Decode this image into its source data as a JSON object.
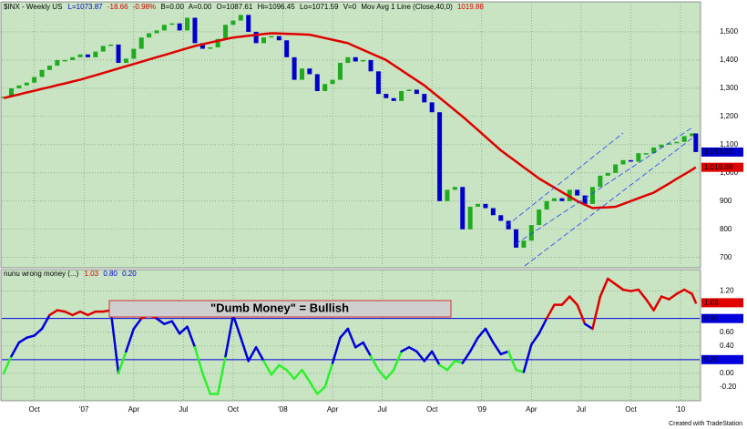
{
  "header": {
    "symbol": "$INX - Weekly US",
    "last": "L=1073.87",
    "change": "-18.66",
    "pct": "-0.98%",
    "bid": "B=0.00",
    "ask": "A=0.00",
    "open": "O=1087.61",
    "high": "Hi=1096.45",
    "low": "Lo=1071.59",
    "volume": "V=0",
    "study": "Mov Avg 1 Line (Close,40,0)",
    "study_value": "1019.88"
  },
  "chart_data": [
    {
      "type": "candlestick",
      "x": [
        0,
        2,
        4,
        6,
        8,
        10,
        12,
        14,
        16,
        18,
        20,
        22,
        24,
        26,
        28,
        30,
        32,
        34,
        36,
        38,
        40,
        42,
        44,
        46,
        48,
        50,
        52,
        54,
        56,
        58,
        60,
        62,
        64,
        66,
        68,
        70,
        72,
        74,
        76,
        78,
        80,
        82,
        84,
        86,
        88,
        90,
        92,
        94,
        96,
        98,
        100,
        102,
        104,
        106,
        108,
        110,
        112,
        114,
        116,
        118,
        120,
        122,
        124,
        126,
        128,
        130,
        132,
        134,
        136,
        138,
        140,
        142,
        144,
        146,
        148,
        150,
        152,
        154,
        156,
        158,
        160,
        162,
        164,
        166,
        168,
        170,
        172,
        174,
        176,
        178,
        180,
        181
      ],
      "up_color": "#1faa1f",
      "down_color": "#0000cc",
      "series": [
        {
          "color": "#0000cc",
          "last_label": "1,073.87",
          "values": [
            1270,
            1300,
            1310,
            1320,
            1340,
            1365,
            1380,
            1400,
            1400,
            1410,
            1420,
            1410,
            1430,
            1450,
            1455,
            1390,
            1405,
            1440,
            1480,
            1495,
            1505,
            1525,
            1530,
            1505,
            1550,
            1460,
            1440,
            1445,
            1475,
            1525,
            1540,
            1560,
            1500,
            1460,
            1480,
            1485,
            1470,
            1410,
            1330,
            1370,
            1350,
            1290,
            1315,
            1330,
            1390,
            1410,
            1395,
            1400,
            1360,
            1280,
            1265,
            1255,
            1290,
            1295,
            1280,
            1250,
            1215,
            900,
            940,
            950,
            800,
            880,
            890,
            875,
            850,
            830,
            800,
            735,
            760,
            815,
            870,
            900,
            910,
            900,
            940,
            920,
            890,
            950,
            990,
            1000,
            1030,
            1045,
            1040,
            1070,
            1070,
            1090,
            1100,
            1105,
            1110,
            1130,
            1140,
            1073.87
          ]
        },
        {
          "color": "#e00000",
          "last_label": "1,019.88",
          "values": [
            1265,
            1272,
            1278,
            1285,
            1291,
            1298,
            1304,
            1311,
            1317,
            1324,
            1330,
            1338,
            1346,
            1354,
            1362,
            1370,
            1378,
            1386,
            1394,
            1402,
            1410,
            1418,
            1426,
            1434,
            1442,
            1450,
            1456,
            1462,
            1468,
            1474,
            1480,
            1483,
            1486,
            1489,
            1492,
            1495,
            1494,
            1493,
            1492,
            1491,
            1490,
            1484,
            1478,
            1472,
            1466,
            1460,
            1448,
            1436,
            1424,
            1412,
            1400,
            1382,
            1364,
            1346,
            1328,
            1310,
            1288,
            1266,
            1244,
            1222,
            1200,
            1176,
            1152,
            1128,
            1104,
            1080,
            1060,
            1040,
            1020,
            1000,
            980,
            964,
            948,
            932,
            916,
            900,
            887,
            875,
            877,
            878,
            880,
            890,
            900,
            910,
            920,
            930,
            946,
            962,
            979,
            995,
            1011,
            1019.88
          ]
        }
      ],
      "xlim": [
        -0.5,
        182
      ],
      "ylim": [
        670,
        1600
      ],
      "yticks": [
        {
          "value": 1500,
          "label": "1,500"
        },
        {
          "value": 1400,
          "label": "1,400"
        },
        {
          "value": 1300,
          "label": "1,300"
        },
        {
          "value": 1200,
          "label": "1,200"
        },
        {
          "value": 1100,
          "label": "1,100"
        },
        {
          "value": 1000,
          "label": "1,000"
        },
        {
          "value": 900,
          "label": "900"
        },
        {
          "value": 800,
          "label": "800"
        },
        {
          "value": 700,
          "label": "700"
        }
      ],
      "grid": true
    },
    {
      "type": "line",
      "title": "nunu wrong money (...)",
      "x": [
        0,
        2,
        4,
        6,
        8,
        10,
        12,
        14,
        16,
        18,
        20,
        22,
        24,
        26,
        28,
        30,
        32,
        34,
        36,
        38,
        40,
        42,
        44,
        46,
        48,
        50,
        52,
        54,
        56,
        58,
        60,
        62,
        64,
        66,
        68,
        70,
        72,
        74,
        76,
        78,
        80,
        82,
        84,
        86,
        88,
        90,
        92,
        94,
        96,
        98,
        100,
        102,
        104,
        106,
        108,
        110,
        112,
        114,
        116,
        118,
        120,
        122,
        124,
        126,
        128,
        130,
        132,
        134,
        136,
        138,
        140,
        142,
        144,
        146,
        148,
        150,
        152,
        154,
        156,
        158,
        160,
        162,
        164,
        166,
        168,
        170,
        172,
        174,
        176,
        178,
        180,
        181
      ],
      "values": [
        0,
        0.25,
        0.45,
        0.52,
        0.55,
        0.65,
        0.85,
        0.92,
        0.9,
        0.85,
        0.9,
        0.85,
        0.9,
        0.9,
        0.92,
        0,
        0.32,
        0.65,
        0.8,
        0.85,
        0.8,
        0.72,
        0.76,
        0.58,
        0.68,
        0.38,
        0,
        -0.3,
        -0.3,
        0.25,
        0.85,
        0.52,
        0.18,
        0.38,
        0.18,
        -0.02,
        0.12,
        0.05,
        -0.08,
        0.05,
        -0.12,
        -0.3,
        -0.2,
        0.15,
        0.52,
        0.65,
        0.38,
        0.45,
        0.25,
        0.05,
        -0.08,
        0.05,
        0.32,
        0.38,
        0.32,
        0.18,
        0.32,
        0.12,
        0.05,
        0.18,
        0.15,
        0.32,
        0.52,
        0.65,
        0.45,
        0.28,
        0.32,
        0.05,
        0.02,
        0.42,
        0.58,
        0.8,
        1.0,
        1.0,
        1.12,
        1.0,
        0.72,
        0.65,
        1.12,
        1.38,
        1.3,
        1.22,
        1.2,
        1.22,
        1.08,
        0.92,
        1.12,
        1.08,
        1.16,
        1.22,
        1.16,
        1.03
      ],
      "last_label": "1.03",
      "above_color": "#e00000",
      "mid_color": "#0000dd",
      "below_color": "#2ef02e",
      "thresholds": [
        {
          "value": 0.8,
          "label": "0.80"
        },
        {
          "value": 0.2,
          "label": "0.20"
        }
      ],
      "threshold_color": "#0000dd",
      "annotation": "\"Dumb Money\" = Bullish",
      "xlim": [
        -0.5,
        182
      ],
      "ylim": [
        -0.4,
        1.5
      ],
      "yticks": [
        {
          "value": 1.2,
          "label": "1.20"
        },
        {
          "value": 0.6,
          "label": "0.60"
        },
        {
          "value": 0.4,
          "label": "0.40"
        },
        {
          "value": 0,
          "label": "0.00"
        },
        {
          "value": -0.2,
          "label": "-0.20"
        }
      ],
      "xticks": [
        {
          "value": 8,
          "label": "Oct"
        },
        {
          "value": 21,
          "label": "'07"
        },
        {
          "value": 34,
          "label": "Apr"
        },
        {
          "value": 47,
          "label": "Jul"
        },
        {
          "value": 60,
          "label": "Oct"
        },
        {
          "value": 73,
          "label": "'08"
        },
        {
          "value": 86,
          "label": "Apr"
        },
        {
          "value": 99,
          "label": "Jul"
        },
        {
          "value": 112,
          "label": "Oct"
        },
        {
          "value": 125,
          "label": "'09"
        },
        {
          "value": 138,
          "label": "Apr"
        },
        {
          "value": 151,
          "label": "Jul"
        },
        {
          "value": 164,
          "label": "Oct"
        },
        {
          "value": 177,
          "label": "'10"
        }
      ],
      "grid": true
    }
  ],
  "footer": "Created with TradeStation"
}
